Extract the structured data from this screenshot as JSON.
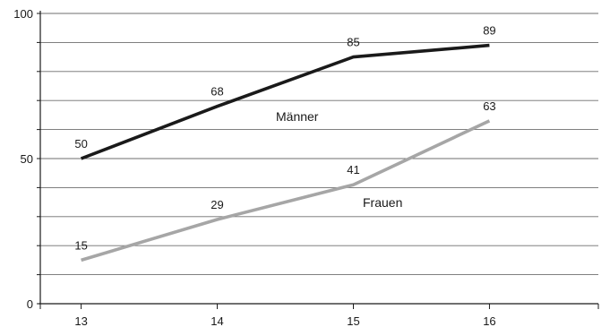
{
  "chart_data": {
    "type": "line",
    "x": [
      13,
      14,
      15,
      16
    ],
    "xlim": [
      12.7,
      16.8
    ],
    "ylim": [
      0,
      100
    ],
    "y_ticks_labeled": [
      0,
      50,
      100
    ],
    "grid": "horizontal every 10",
    "series": [
      {
        "name": "Männer",
        "values": [
          50,
          68,
          85,
          89
        ],
        "color": "#1a1a1a",
        "labels": [
          "50",
          "68",
          "85",
          "89"
        ]
      },
      {
        "name": "Frauen",
        "values": [
          15,
          29,
          41,
          63
        ],
        "color": "#a6a6a6",
        "labels": [
          "15",
          "29",
          "41",
          "63"
        ]
      }
    ],
    "x_tick_labels": [
      "13",
      "14",
      "15",
      "16"
    ],
    "y_tick_labels": [
      "0",
      "50",
      "100"
    ]
  }
}
